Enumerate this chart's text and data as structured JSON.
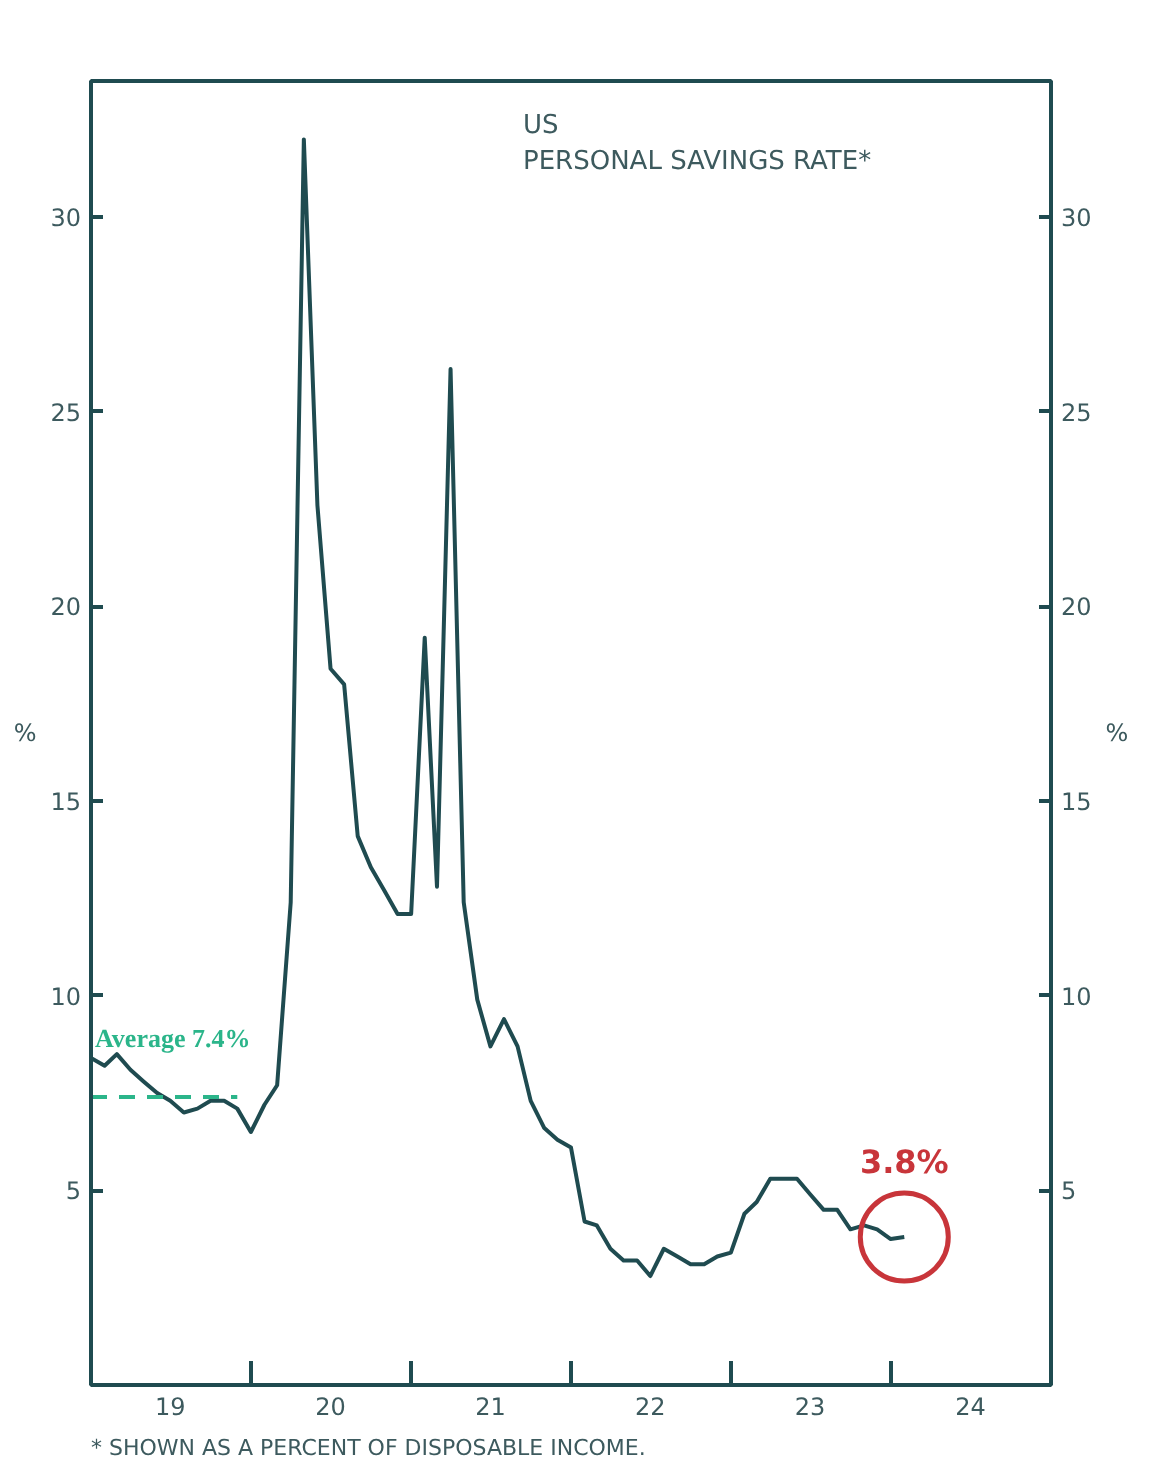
{
  "chart_data": {
    "type": "line",
    "title": "US",
    "subtitle": "PERSONAL SAVINGS RATE*",
    "ylabel": "%",
    "y2label": "%",
    "xlim": [
      "2019-01-01",
      "2025-01-01"
    ],
    "xticks": [
      {
        "value": "2019-01-01",
        "label": null
      },
      {
        "value": "2020-01-01",
        "label": null
      },
      {
        "value": "2021-01-01",
        "label": null
      },
      {
        "value": "2022-01-01",
        "label": null
      },
      {
        "value": "2023-01-01",
        "label": null
      },
      {
        "value": "2024-01-01",
        "label": null
      },
      {
        "value": "2025-01-01",
        "label": null
      },
      {
        "value": "2019-07-01",
        "label": "19"
      },
      {
        "value": "2020-07-01",
        "label": "20"
      },
      {
        "value": "2021-07-01",
        "label": "21"
      },
      {
        "value": "2022-07-01",
        "label": "22"
      },
      {
        "value": "2023-07-01",
        "label": "23"
      },
      {
        "value": "2024-07-01",
        "label": "24"
      }
    ],
    "ylim": [
      0,
      33.5
    ],
    "yticks": [
      5,
      10,
      15,
      20,
      25,
      30
    ],
    "y2lim": [
      0,
      33.5
    ],
    "y2ticks": [
      5,
      10,
      15,
      20,
      25,
      30
    ],
    "series": [
      {
        "color": "#1f4b50",
        "line_style": "solid",
        "x": [
          "2019-01",
          "2019-02",
          "2019-03",
          "2019-04",
          "2019-05",
          "2019-06",
          "2019-07",
          "2019-08",
          "2019-09",
          "2019-10",
          "2019-11",
          "2019-12",
          "2020-01",
          "2020-02",
          "2020-03",
          "2020-04",
          "2020-05",
          "2020-06",
          "2020-07",
          "2020-08",
          "2020-09",
          "2020-10",
          "2020-11",
          "2020-12",
          "2021-01",
          "2021-02",
          "2021-03",
          "2021-04",
          "2021-05",
          "2021-06",
          "2021-07",
          "2021-08",
          "2021-09",
          "2021-10",
          "2021-11",
          "2021-12",
          "2022-01",
          "2022-02",
          "2022-03",
          "2022-04",
          "2022-05",
          "2022-06",
          "2022-07",
          "2022-08",
          "2022-09",
          "2022-10",
          "2022-11",
          "2022-12",
          "2023-01",
          "2023-02",
          "2023-03",
          "2023-04",
          "2023-05",
          "2023-06",
          "2023-07",
          "2023-08",
          "2023-09",
          "2023-10",
          "2023-11",
          "2023-12",
          "2024-01",
          "2024-02"
        ],
        "values": [
          8.4,
          8.2,
          8.5,
          8.1,
          7.8,
          7.5,
          7.3,
          7.0,
          7.1,
          7.3,
          7.3,
          7.1,
          6.5,
          7.2,
          7.7,
          12.4,
          32.0,
          22.6,
          18.4,
          18.0,
          14.1,
          13.3,
          12.7,
          12.1,
          12.1,
          19.2,
          12.8,
          26.1,
          12.4,
          9.9,
          8.7,
          9.4,
          8.7,
          7.3,
          6.6,
          6.3,
          6.1,
          4.2,
          4.1,
          3.5,
          3.2,
          3.2,
          2.8,
          3.5,
          3.3,
          3.1,
          3.1,
          3.3,
          3.4,
          4.4,
          4.7,
          5.3,
          5.3,
          5.3,
          4.9,
          4.5,
          4.5,
          4.0,
          4.1,
          4.0,
          3.75,
          3.8
        ]
      },
      {
        "color": "#2bb58a",
        "line_style": "dashed",
        "x": [
          "2019-01",
          "2019-12"
        ],
        "values": [
          7.4,
          7.4
        ]
      }
    ],
    "annotations": [
      {
        "text": "Average 7.4%",
        "x": "2019-01",
        "y": 7.4
      },
      {
        "text": "3.8%",
        "x": "2024-02",
        "y": 3.8
      },
      "* SHOWN AS A PERCENT OF DISPOSABLE INCOME."
    ]
  }
}
